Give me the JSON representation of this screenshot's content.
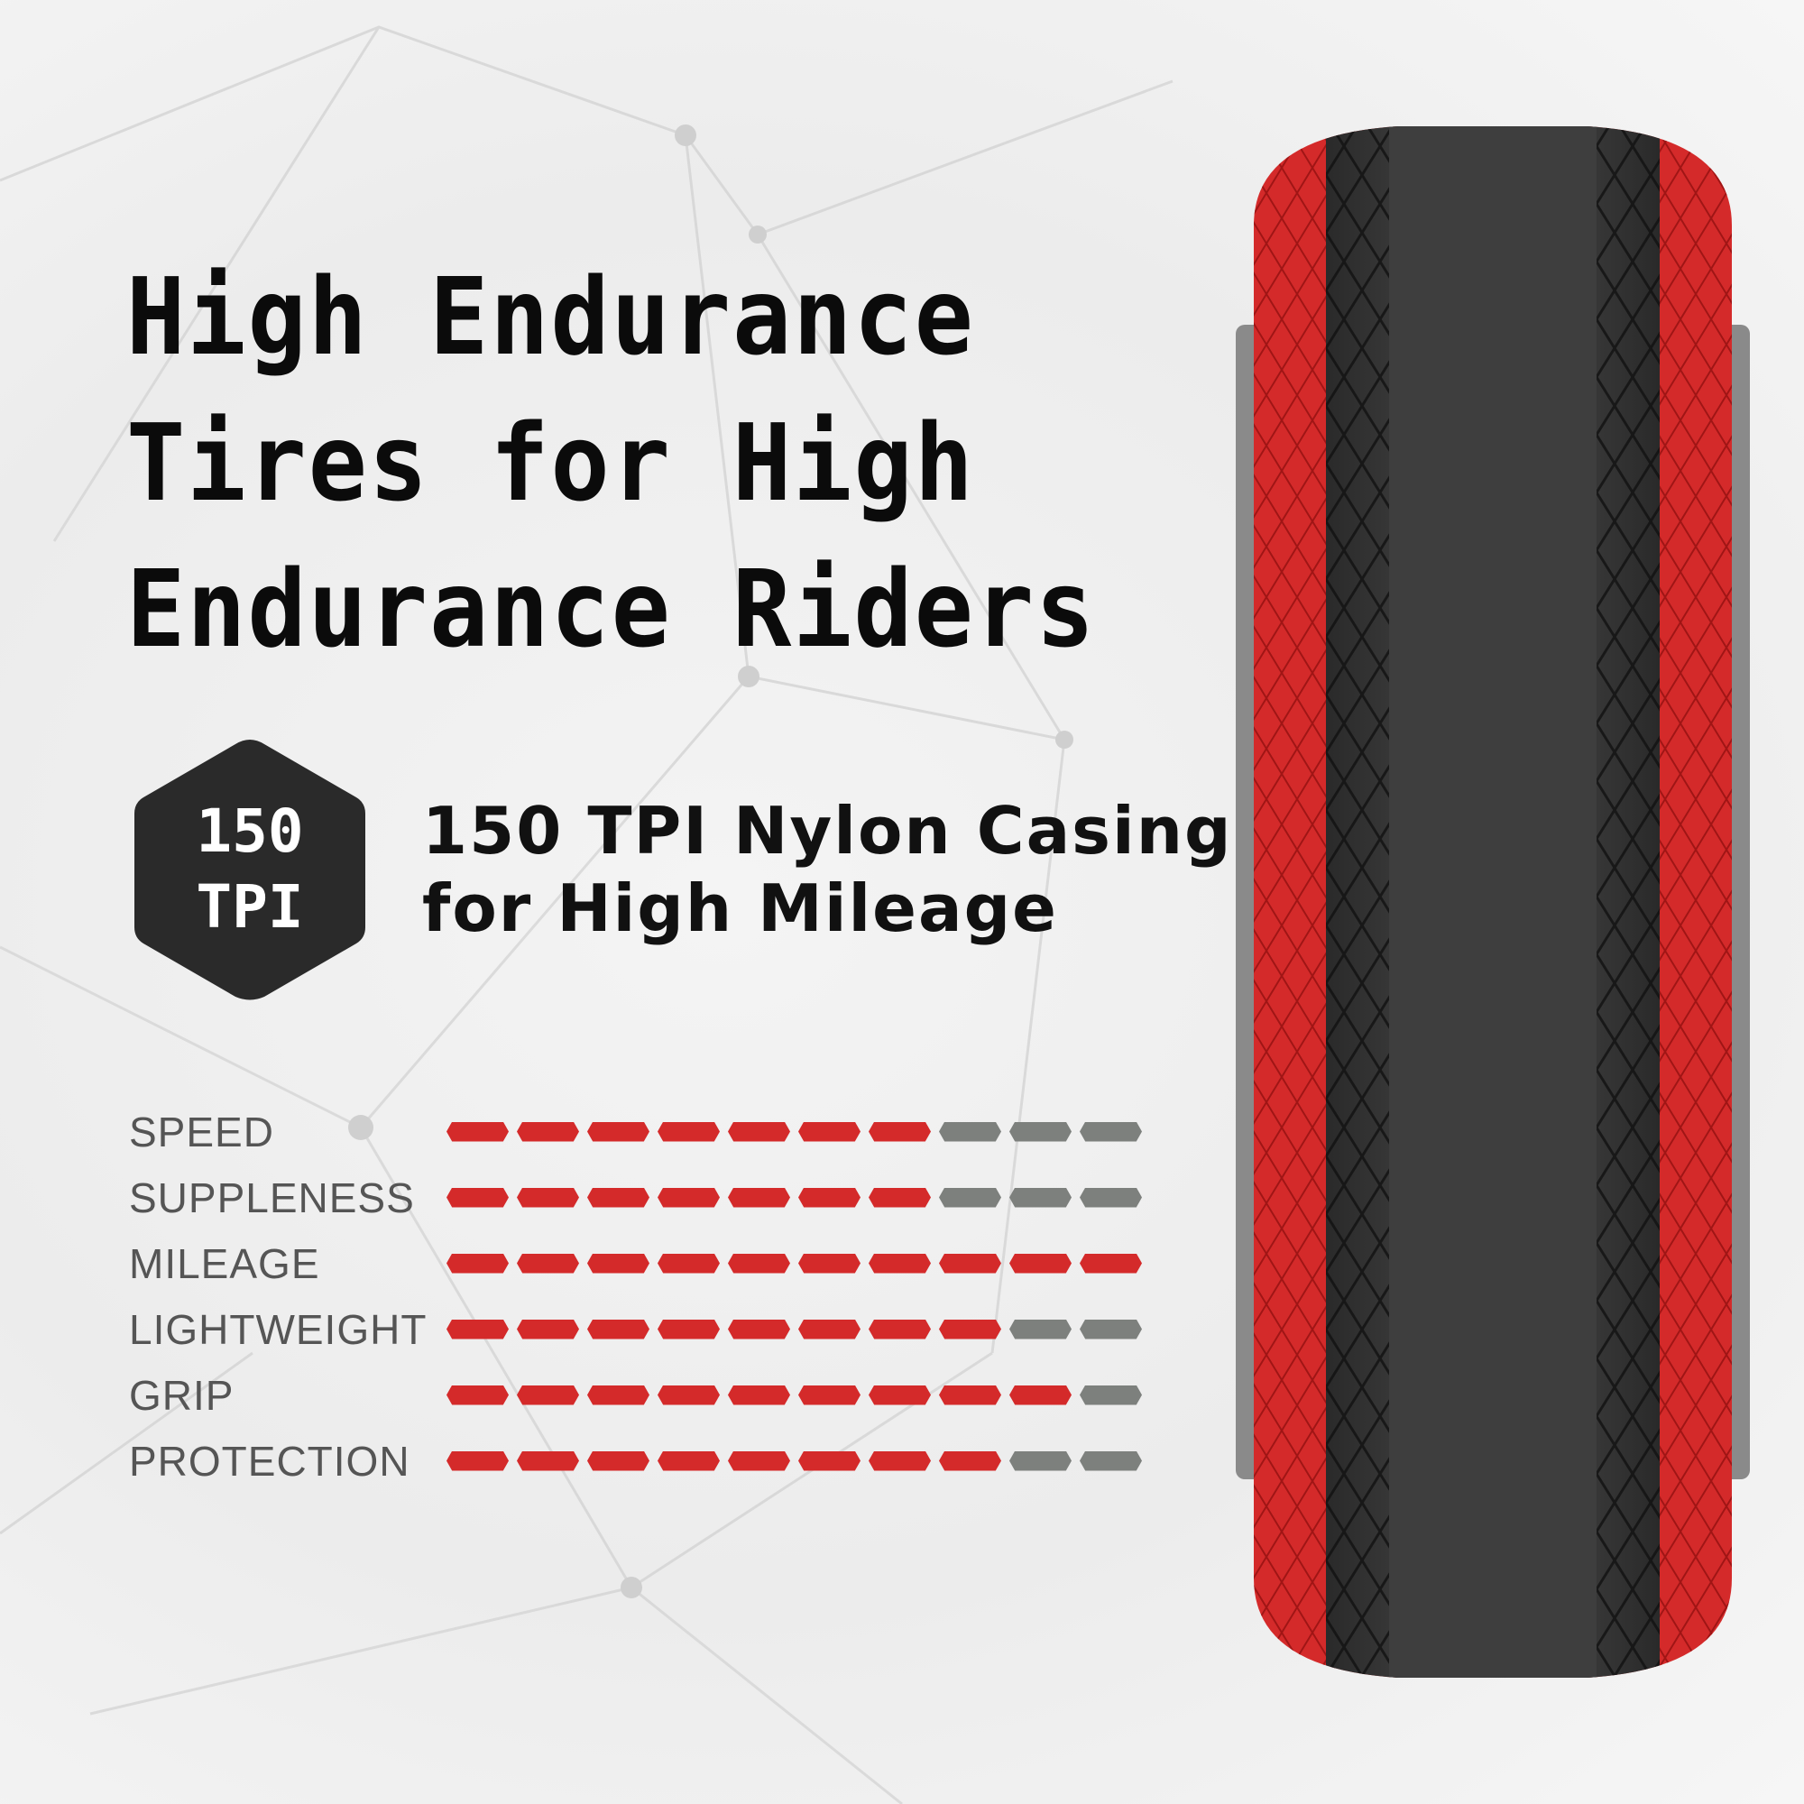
{
  "headline": [
    "High Endurance",
    "Tires for High",
    "Endurance Riders"
  ],
  "badge": {
    "line1": "150",
    "line2": "TPI",
    "icon": "hexagon-badge"
  },
  "feature": {
    "line1": "150 TPI Nylon Casing",
    "line2": "for High Mileage"
  },
  "ratings": {
    "max": 10,
    "items": [
      {
        "label": "SPEED",
        "value": 7
      },
      {
        "label": "SUPPLENESS",
        "value": 7
      },
      {
        "label": "MILEAGE",
        "value": 10
      },
      {
        "label": "LIGHTWEIGHT",
        "value": 8
      },
      {
        "label": "GRIP",
        "value": 9
      },
      {
        "label": "PROTECTION",
        "value": 8
      }
    ]
  },
  "colors": {
    "accent": "#d42a2a",
    "inactive": "#7d807d",
    "badge": "#2a2a2a",
    "tread": "#3a3a3a"
  }
}
